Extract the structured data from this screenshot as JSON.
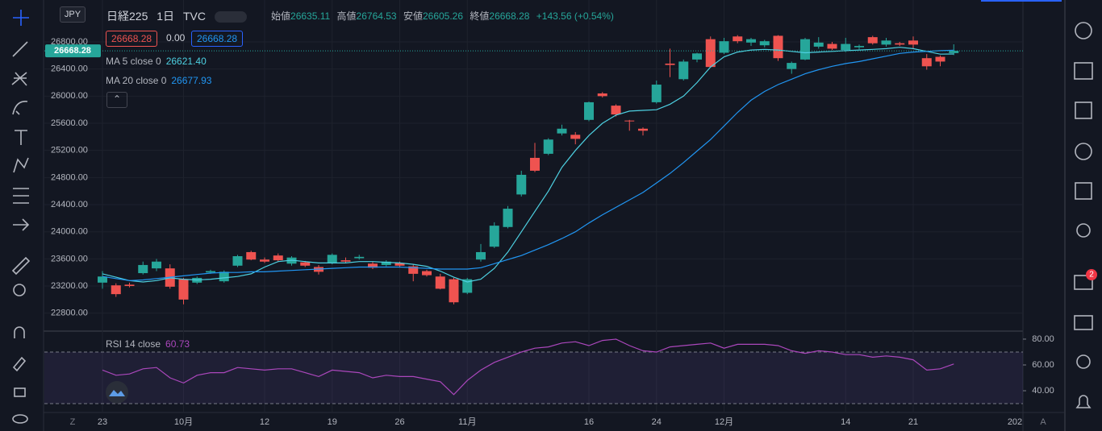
{
  "header": {
    "symbol": "日経225",
    "interval": "1日",
    "source": "TVC",
    "currency": "JPY",
    "ohlc": [
      {
        "label": "始値",
        "value": "26635.11"
      },
      {
        "label": "高値",
        "value": "26764.53"
      },
      {
        "label": "安値",
        "value": "26605.26"
      },
      {
        "label": "終値",
        "value": "26668.28"
      }
    ],
    "change": "+143.56 (+0.54%)",
    "bid": "26668.28",
    "spread": "0.00",
    "ask": "26668.28",
    "price_label": "26668.28"
  },
  "axis_marks": {
    "left": "Z",
    "right": "A",
    "overflow_date": "202"
  },
  "notifications": "2",
  "chart_data": [
    {
      "type": "candlestick",
      "categories": [
        "23",
        null,
        null,
        null,
        null,
        null,
        "10月",
        null,
        null,
        null,
        null,
        null,
        "12",
        null,
        null,
        null,
        null,
        "19",
        null,
        null,
        null,
        null,
        "26",
        null,
        null,
        null,
        null,
        "11月",
        null,
        null,
        null,
        null,
        null,
        null,
        null,
        null,
        "16",
        null,
        null,
        null,
        null,
        "24",
        null,
        null,
        null,
        null,
        "12月",
        null,
        null,
        null,
        null,
        null,
        null,
        null,
        null,
        "14",
        null,
        null,
        null,
        null,
        "21",
        null,
        null,
        null
      ],
      "open": [
        23250,
        23210,
        23220,
        23390,
        23460,
        23460,
        23300,
        23250,
        23400,
        23270,
        23500,
        23700,
        23590,
        23650,
        23530,
        23550,
        23480,
        23540,
        23580,
        23610,
        23530,
        23510,
        23540,
        23490,
        23420,
        23340,
        23300,
        23100,
        23590,
        23780,
        24070,
        24550,
        25090,
        25150,
        25450,
        25430,
        25650,
        26040,
        25860,
        25640,
        25520,
        25910,
        26480,
        26250,
        26540,
        26840,
        26640,
        26880,
        26790,
        26750,
        26890,
        26400,
        26540,
        26730,
        26770,
        26680,
        26720,
        26870,
        26760,
        26780,
        26820,
        26560,
        26580,
        26635.11
      ],
      "high": [
        23420,
        23240,
        23250,
        23560,
        23600,
        23520,
        23320,
        23340,
        23440,
        23430,
        23660,
        23720,
        23620,
        23680,
        23640,
        23570,
        23510,
        23680,
        23620,
        23660,
        23560,
        23580,
        23560,
        23520,
        23440,
        23380,
        23320,
        23320,
        23820,
        24140,
        24380,
        24900,
        25310,
        25380,
        25580,
        25470,
        25920,
        26060,
        25880,
        25650,
        25540,
        26230,
        26700,
        26540,
        26640,
        26880,
        26860,
        26900,
        26860,
        26830,
        26900,
        26510,
        26860,
        26870,
        26800,
        26860,
        26760,
        26890,
        26860,
        26800,
        26880,
        26620,
        26600,
        26764.53
      ],
      "low": [
        23160,
        23040,
        23180,
        23370,
        23420,
        23160,
        22930,
        23230,
        23380,
        23250,
        23480,
        23580,
        23540,
        23560,
        23500,
        23480,
        23370,
        23520,
        23540,
        23590,
        23450,
        23490,
        23470,
        23270,
        23340,
        23150,
        22930,
        23080,
        23560,
        23760,
        24050,
        24520,
        24880,
        25130,
        25420,
        25290,
        25630,
        25980,
        25700,
        25490,
        25420,
        25890,
        26280,
        26230,
        26500,
        26420,
        26620,
        26780,
        26740,
        26720,
        26520,
        26330,
        26530,
        26700,
        26680,
        26650,
        26690,
        26760,
        26730,
        26740,
        26700,
        26390,
        26440,
        26605.26
      ],
      "close": [
        23340,
        23080,
        23200,
        23510,
        23560,
        23190,
        23000,
        23320,
        23420,
        23410,
        23640,
        23590,
        23560,
        23580,
        23620,
        23500,
        23410,
        23660,
        23560,
        23630,
        23470,
        23560,
        23500,
        23380,
        23360,
        23160,
        22960,
        23300,
        23700,
        24090,
        24340,
        24840,
        24900,
        25360,
        25520,
        25370,
        25910,
        26000,
        25730,
        25630,
        25490,
        26170,
        26460,
        26510,
        26630,
        26430,
        26810,
        26810,
        26840,
        26810,
        26560,
        26490,
        26840,
        26790,
        26700,
        26770,
        26740,
        26780,
        26820,
        26760,
        26760,
        26440,
        26510,
        26668.28
      ],
      "up_color": "#26a69a",
      "down_color": "#ef5350",
      "series": [
        {
          "name": "MA 5 close 0",
          "color": "#4dd0e1",
          "legend_value": "26621.40",
          "values": [
            23380,
            23330,
            23280,
            23260,
            23280,
            23320,
            23300,
            23290,
            23300,
            23320,
            23340,
            23380,
            23480,
            23560,
            23580,
            23560,
            23540,
            23540,
            23540,
            23560,
            23560,
            23550,
            23540,
            23520,
            23490,
            23420,
            23330,
            23260,
            23300,
            23460,
            23700,
            24000,
            24300,
            24600,
            24950,
            25200,
            25420,
            25600,
            25720,
            25780,
            25790,
            25800,
            25880,
            26000,
            26200,
            26430,
            26580,
            26650,
            26680,
            26690,
            26680,
            26660,
            26640,
            26650,
            26660,
            26670,
            26680,
            26690,
            26700,
            26720,
            26700,
            26660,
            26620,
            26621.4
          ]
        },
        {
          "name": "MA 20 close 0",
          "color": "#2196f3",
          "legend_value": "26677.93",
          "values": [
            23340,
            23310,
            23280,
            23290,
            23310,
            23330,
            23350,
            23370,
            23390,
            23400,
            23400,
            23410,
            23410,
            23420,
            23430,
            23440,
            23450,
            23460,
            23470,
            23480,
            23480,
            23480,
            23480,
            23470,
            23460,
            23450,
            23450,
            23450,
            23470,
            23530,
            23590,
            23650,
            23730,
            23810,
            23900,
            24000,
            24130,
            24250,
            24360,
            24470,
            24580,
            24720,
            24860,
            25020,
            25190,
            25360,
            25560,
            25760,
            25940,
            26070,
            26170,
            26250,
            26330,
            26390,
            26440,
            26480,
            26510,
            26550,
            26590,
            26630,
            26650,
            26660,
            26670,
            26677.93
          ]
        }
      ],
      "ylim": [
        22547,
        27299
      ],
      "yticks": [
        {
          "value": 22800,
          "label": "22800.00"
        },
        {
          "value": 23200,
          "label": "23200.00"
        },
        {
          "value": 23600,
          "label": "23600.00"
        },
        {
          "value": 24000,
          "label": "24000.00"
        },
        {
          "value": 24400,
          "label": "24400.00"
        },
        {
          "value": 24800,
          "label": "24800.00"
        },
        {
          "value": 25200,
          "label": "25200.00"
        },
        {
          "value": 25600,
          "label": "25600.00"
        },
        {
          "value": 26000,
          "label": "26000.00"
        },
        {
          "value": 26400,
          "label": "26400.00"
        },
        {
          "value": 26800,
          "label": "26800.00"
        }
      ],
      "grid": true
    },
    {
      "type": "line",
      "series": [
        {
          "name": "RSI 14 close",
          "color": "#ab47bc",
          "legend_value": "60.73",
          "values": [
            56,
            52,
            53,
            57,
            58,
            50,
            46,
            52,
            54,
            54,
            58,
            57,
            56,
            57,
            57,
            54,
            51,
            56,
            55,
            54,
            50,
            52,
            51,
            51,
            49,
            47,
            37,
            48,
            56,
            62,
            66,
            70,
            73,
            74,
            77,
            78,
            75,
            79,
            80,
            75,
            71,
            70,
            74,
            75,
            76,
            77,
            73,
            76,
            76,
            76,
            75,
            71,
            69,
            71,
            70,
            68,
            68,
            66,
            67,
            66,
            64,
            56,
            57,
            60.73
          ]
        }
      ],
      "bands": [
        30,
        70
      ],
      "band_color": "#7e57c2",
      "ylim": [
        24.4,
        85.6
      ],
      "yticks": [
        {
          "value": 40,
          "label": "40.00"
        },
        {
          "value": 60,
          "label": "60.00"
        },
        {
          "value": 80,
          "label": "80.00"
        }
      ]
    }
  ]
}
